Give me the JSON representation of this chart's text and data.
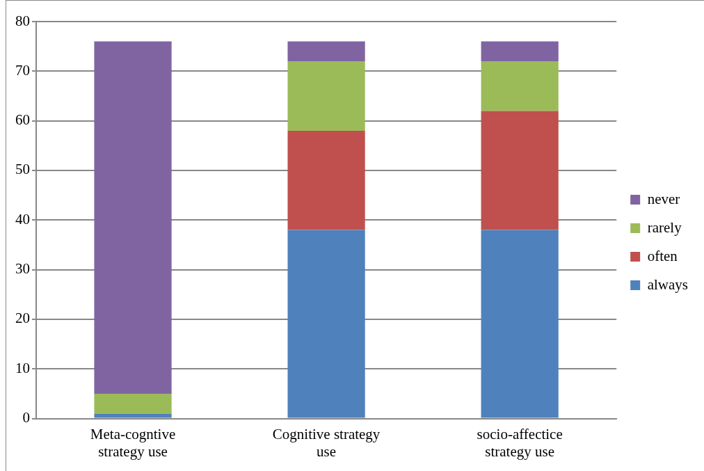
{
  "chart_data": {
    "type": "bar",
    "stacked": true,
    "categories": [
      "Meta-cogntive strategy use",
      "Cognitive strategy use",
      "socio-affectice strategy use"
    ],
    "series": [
      {
        "name": "always",
        "color": "#4f81bd",
        "values": [
          1,
          38,
          38
        ]
      },
      {
        "name": "often",
        "color": "#c0504d",
        "values": [
          0,
          20,
          24
        ]
      },
      {
        "name": "rarely",
        "color": "#9bbb59",
        "values": [
          4,
          14,
          10
        ]
      },
      {
        "name": "never",
        "color": "#8064a2",
        "values": [
          71,
          4,
          4
        ]
      }
    ],
    "ylim": [
      0,
      80
    ],
    "yticks": [
      0,
      10,
      20,
      30,
      40,
      50,
      60,
      70,
      80
    ],
    "grid": "y",
    "legend": "right"
  }
}
